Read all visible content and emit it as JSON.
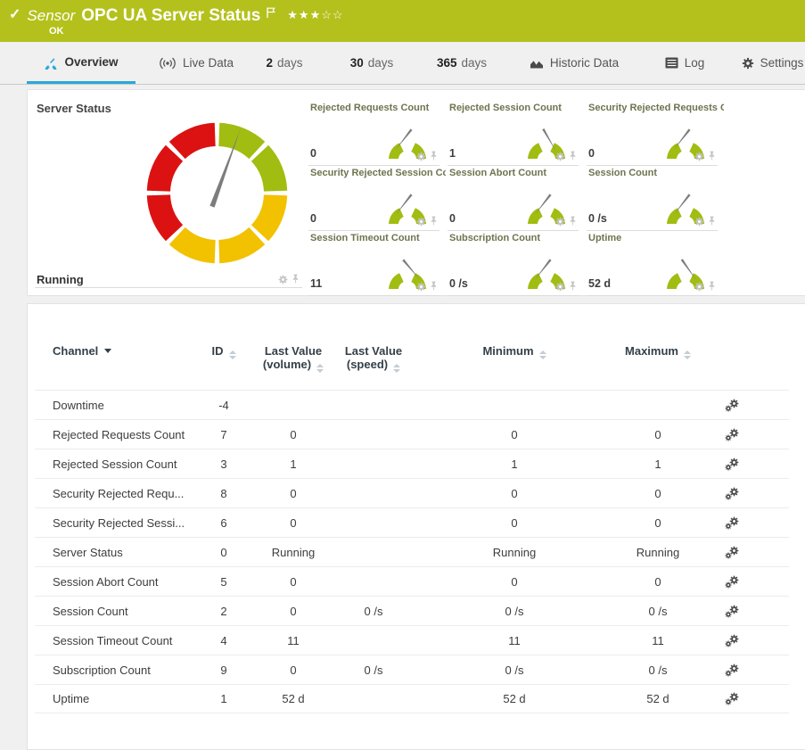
{
  "colors": {
    "brand_green": "#b4c11c",
    "accent_blue": "#29a9d9",
    "gauge_green": "#a1bd11",
    "gauge_yellow": "#f2c100",
    "gauge_red": "#dc1212",
    "needle_gray": "#7d7d7d"
  },
  "header": {
    "kind": "Sensor",
    "title": "OPC UA Server Status",
    "status": "OK",
    "rating": {
      "filled": 3,
      "max": 5
    }
  },
  "tabs": [
    {
      "label": "Overview",
      "active": true
    },
    {
      "label": "Live Data"
    },
    {
      "number": "2",
      "label": "days"
    },
    {
      "number": "30",
      "label": "days"
    },
    {
      "number": "365",
      "label": "days"
    },
    {
      "label": "Historic Data"
    },
    {
      "label": "Log"
    },
    {
      "label": "Settings"
    }
  ],
  "gauges": {
    "main": {
      "title": "Server Status",
      "value": "Running",
      "needle_deg": 20,
      "segments": [
        {
          "start": 2,
          "end": 43,
          "color": "#a1bd11"
        },
        {
          "start": 47,
          "end": 88,
          "color": "#a1bd11"
        },
        {
          "start": 92,
          "end": 133,
          "color": "#f2c100"
        },
        {
          "start": 137,
          "end": 178,
          "color": "#f2c100"
        },
        {
          "start": 182,
          "end": 223,
          "color": "#f2c100"
        },
        {
          "start": 227,
          "end": 268,
          "color": "#dc1212"
        },
        {
          "start": 272,
          "end": 313,
          "color": "#dc1212"
        },
        {
          "start": 317,
          "end": 358,
          "color": "#dc1212"
        }
      ]
    },
    "minis": [
      {
        "title": "Rejected Requests Count",
        "value": "0",
        "needle_deg": 218
      },
      {
        "title": "Rejected Session Count",
        "value": "1",
        "needle_deg": 150
      },
      {
        "title": "Security Rejected Requests C...",
        "value": "0",
        "needle_deg": 218
      },
      {
        "title": "Security Rejected Session Co...",
        "value": "0",
        "needle_deg": 218
      },
      {
        "title": "Session Abort Count",
        "value": "0",
        "needle_deg": 218
      },
      {
        "title": "Session Count",
        "value": "0 /s",
        "needle_deg": 218
      },
      {
        "title": "Session Timeout Count",
        "value": "11",
        "needle_deg": 140
      },
      {
        "title": "Subscription Count",
        "value": "0 /s",
        "needle_deg": 218
      },
      {
        "title": "Uptime",
        "value": "52 d",
        "needle_deg": 145
      }
    ]
  },
  "table": {
    "headers": {
      "channel": "Channel",
      "id": "ID",
      "last_value_volume": "Last Value (volume)",
      "last_value_speed": "Last Value (speed)",
      "minimum": "Minimum",
      "maximum": "Maximum"
    },
    "rows": [
      [
        "Downtime",
        "-4",
        "",
        "",
        "",
        ""
      ],
      [
        "Rejected Requests Count",
        "7",
        "0",
        "",
        "0",
        "0"
      ],
      [
        "Rejected Session Count",
        "3",
        "1",
        "",
        "1",
        "1"
      ],
      [
        "Security Rejected Requ...",
        "8",
        "0",
        "",
        "0",
        "0"
      ],
      [
        "Security Rejected Sessi...",
        "6",
        "0",
        "",
        "0",
        "0"
      ],
      [
        "Server Status",
        "0",
        "Running",
        "",
        "Running",
        "Running"
      ],
      [
        "Session Abort Count",
        "5",
        "0",
        "",
        "0",
        "0"
      ],
      [
        "Session Count",
        "2",
        "0",
        "0 /s",
        "0 /s",
        "0 /s"
      ],
      [
        "Session Timeout Count",
        "4",
        "11",
        "",
        "11",
        "11"
      ],
      [
        "Subscription Count",
        "9",
        "0",
        "0 /s",
        "0 /s",
        "0 /s"
      ],
      [
        "Uptime",
        "1",
        "52 d",
        "",
        "52 d",
        "52 d"
      ]
    ]
  }
}
